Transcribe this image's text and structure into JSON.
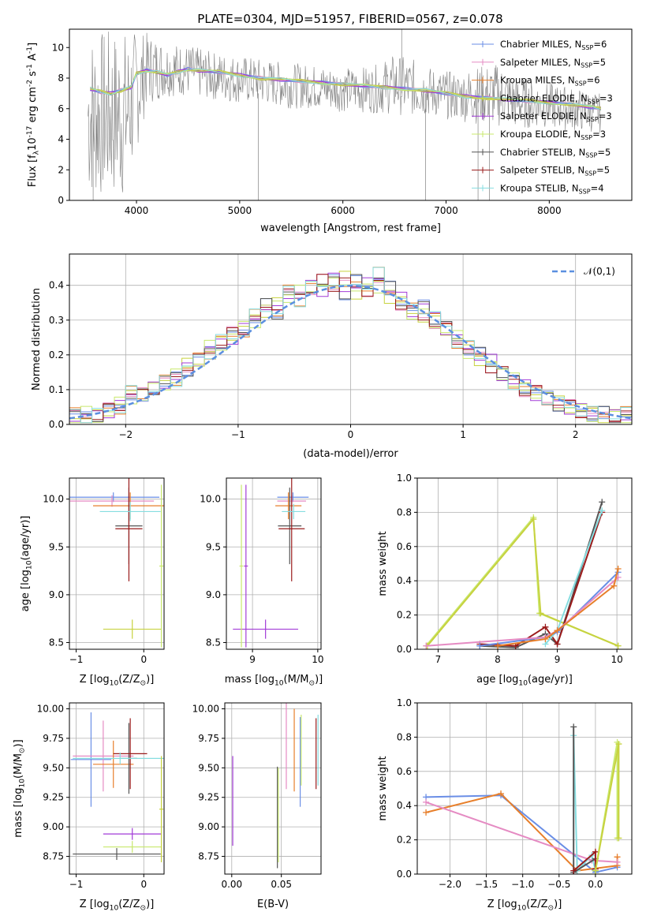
{
  "colors": {
    "chabrier_miles": "#6a8ee6",
    "salpeter_miles": "#e58bc3",
    "kroupa_miles": "#e77f2b",
    "chabrier_elodie": "#c7d23f",
    "salpeter_elodie": "#a23bd7",
    "kroupa_elodie": "#c8e86d",
    "chabrier_stelib": "#555555",
    "salpeter_stelib": "#9a1b1b",
    "kroupa_stelib": "#86dde0",
    "data": "#808080",
    "normal": "#5b8fe0",
    "grid": "#b0b0b0"
  },
  "chart_data": [
    {
      "id": "spectrum",
      "type": "line",
      "title": "PLATE=0304, MJD=51957, FIBERID=0567, z=0.078",
      "xlabel": "wavelength [Angstrom, rest frame]",
      "ylabel_parts": [
        "Flux [f",
        "λ",
        "10",
        "-17",
        " erg cm",
        "-2",
        " s",
        "-1",
        " A",
        "-1",
        "]"
      ],
      "xlim": [
        3350,
        8800
      ],
      "ylim": [
        0,
        11.2
      ],
      "xticks": [
        4000,
        5000,
        6000,
        7000,
        8000
      ],
      "yticks": [
        0,
        2,
        4,
        6,
        8,
        10
      ],
      "grid": false,
      "legend_position": "top-right",
      "legend": [
        {
          "label": "Chabrier MILES, N",
          "sub": "SSP",
          "tail": "=6",
          "color_key": "chabrier_miles"
        },
        {
          "label": "Salpeter MILES, N",
          "sub": "SSP",
          "tail": "=5",
          "color_key": "salpeter_miles"
        },
        {
          "label": "Kroupa MILES, N",
          "sub": "SSP",
          "tail": "=6",
          "color_key": "kroupa_miles"
        },
        {
          "label": "Chabrier ELODIE, N",
          "sub": "SSP",
          "tail": "=3",
          "color_key": "chabrier_elodie"
        },
        {
          "label": "Salpeter ELODIE, N",
          "sub": "SSP",
          "tail": "=3",
          "color_key": "salpeter_elodie"
        },
        {
          "label": "Kroupa ELODIE, N",
          "sub": "SSP",
          "tail": "=3",
          "color_key": "kroupa_elodie"
        },
        {
          "label": "Chabrier STELIB, N",
          "sub": "SSP",
          "tail": "=5",
          "color_key": "chabrier_stelib"
        },
        {
          "label": "Salpeter STELIB, N",
          "sub": "SSP",
          "tail": "=5",
          "color_key": "salpeter_stelib"
        },
        {
          "label": "Kroupa STELIB, N",
          "sub": "SSP",
          "tail": "=4",
          "color_key": "kroupa_stelib"
        }
      ],
      "model_continuum": {
        "x": [
          3550,
          3650,
          3750,
          3850,
          3950,
          4000,
          4100,
          4200,
          4300,
          4400,
          4500,
          4600,
          4800,
          5000,
          5200,
          5400,
          5600,
          5800,
          6000,
          6200,
          6400,
          6600,
          6800,
          7000,
          7200,
          7400,
          7600,
          7800,
          8000,
          8200,
          8400,
          8500
        ],
        "y": [
          7.3,
          7.1,
          7.0,
          7.2,
          7.4,
          8.3,
          8.5,
          8.4,
          8.2,
          8.4,
          8.6,
          8.5,
          8.4,
          8.2,
          8.0,
          7.9,
          7.8,
          7.7,
          7.6,
          7.5,
          7.4,
          7.3,
          7.2,
          7.0,
          6.8,
          6.7,
          6.6,
          6.5,
          6.4,
          6.3,
          6.1,
          6.0
        ]
      },
      "observed_envelope": {
        "x": [
          3530,
          3700,
          3900,
          4100,
          4300,
          4500,
          4700,
          4900,
          5100,
          5300,
          5500,
          5700,
          5900,
          6100,
          6300,
          6500,
          6700,
          6900,
          7100,
          7300,
          7500,
          7700,
          7900,
          8100,
          8300,
          8500
        ],
        "y_high": [
          11.2,
          11.2,
          11.2,
          11.0,
          10.4,
          10.2,
          9.8,
          9.6,
          9.4,
          9.2,
          9.0,
          8.9,
          8.8,
          8.7,
          8.8,
          9.6,
          9.2,
          8.6,
          8.4,
          8.8,
          9.0,
          8.2,
          7.8,
          7.6,
          7.3,
          7.0
        ],
        "y_low": [
          0,
          0,
          0,
          6.2,
          6.8,
          6.8,
          6.6,
          6.4,
          6.3,
          6.2,
          6.0,
          6.0,
          5.8,
          5.8,
          5.7,
          5.6,
          5.5,
          5.4,
          5.2,
          5.0,
          4.8,
          4.6,
          4.8,
          4.6,
          4.5,
          4.4
        ]
      }
    },
    {
      "id": "residuals",
      "type": "histogram",
      "xlabel": "(data-model)/error",
      "ylabel": "Normed distribution",
      "xlim": [
        -2.5,
        2.5
      ],
      "ylim": [
        0,
        0.49
      ],
      "xticks": [
        -2,
        -1,
        0,
        1,
        2
      ],
      "yticks": [
        0.0,
        0.1,
        0.2,
        0.3,
        0.4
      ],
      "grid": true,
      "legend_position": "top-right",
      "legend": [
        {
          "label": "𝒩(0,1)",
          "color_key": "normal",
          "style": "dashed"
        }
      ],
      "bin_edges_start": -2.5,
      "bin_width": 0.1,
      "series_values": [
        [
          0.03,
          0.02,
          0.03,
          0.04,
          0.05,
          0.09,
          0.08,
          0.1,
          0.12,
          0.13,
          0.16,
          0.19,
          0.21,
          0.24,
          0.25,
          0.27,
          0.31,
          0.34,
          0.32,
          0.38,
          0.36,
          0.4,
          0.39,
          0.42,
          0.38,
          0.41,
          0.4,
          0.43,
          0.39,
          0.36,
          0.33,
          0.34,
          0.31,
          0.28,
          0.24,
          0.22,
          0.2,
          0.18,
          0.14,
          0.12,
          0.11,
          0.09,
          0.08,
          0.06,
          0.05,
          0.04,
          0.03,
          0.03,
          0.02,
          0.03
        ],
        [
          0.02,
          0.03,
          0.02,
          0.04,
          0.06,
          0.08,
          0.09,
          0.11,
          0.12,
          0.14,
          0.17,
          0.18,
          0.22,
          0.23,
          0.26,
          0.28,
          0.3,
          0.33,
          0.35,
          0.37,
          0.38,
          0.39,
          0.41,
          0.4,
          0.42,
          0.38,
          0.39,
          0.4,
          0.37,
          0.35,
          0.32,
          0.31,
          0.29,
          0.27,
          0.25,
          0.21,
          0.19,
          0.17,
          0.15,
          0.13,
          0.1,
          0.09,
          0.07,
          0.06,
          0.05,
          0.04,
          0.03,
          0.02,
          0.03,
          0.02
        ]
      ],
      "normal_curve": {
        "mean": 0,
        "sigma": 1
      }
    },
    {
      "id": "age_vs_Z",
      "type": "errorbar",
      "xlabel_parts": [
        "Z [log",
        "10",
        "(Z/Z",
        "⊙",
        ")]"
      ],
      "ylabel_parts": [
        "age  [log",
        "10",
        "(age/yr)]"
      ],
      "xlim": [
        -1.1,
        0.3
      ],
      "ylim": [
        8.43,
        10.22
      ],
      "xticks": [
        -1,
        0
      ],
      "yticks": [
        8.5,
        9.0,
        9.5,
        10.0
      ],
      "grid": true,
      "points": [
        {
          "x": -0.45,
          "y": 10.02,
          "xerr": 0.68,
          "yerr": 0.05,
          "color_key": "chabrier_miles"
        },
        {
          "x": -0.47,
          "y": 9.98,
          "xerr": 0.62,
          "yerr": 0.06,
          "color_key": "salpeter_miles"
        },
        {
          "x": -0.2,
          "y": 9.93,
          "xerr": 0.55,
          "yerr": 0.14,
          "color_key": "kroupa_miles"
        },
        {
          "x": -0.22,
          "y": 9.72,
          "xerr": 0.2,
          "yerr": 0.4,
          "color_key": "chabrier_stelib"
        },
        {
          "x": -0.22,
          "y": 9.69,
          "xerr": 0.2,
          "yerr": 0.55,
          "color_key": "salpeter_stelib"
        },
        {
          "x": -0.2,
          "y": 9.87,
          "xerr": 0.45,
          "yerr": 0.1,
          "color_key": "kroupa_stelib"
        },
        {
          "x": -0.17,
          "y": 8.64,
          "xerr": 0.43,
          "yerr": 0.1,
          "color_key": "chabrier_elodie"
        },
        {
          "x": 0.26,
          "y": 9.3,
          "xerr": 0.03,
          "yerr": 0.85,
          "color_key": "kroupa_elodie"
        }
      ]
    },
    {
      "id": "age_vs_mass",
      "type": "errorbar",
      "xlabel_parts": [
        "mass [log",
        "10",
        "(M/M",
        "⊙",
        ")]"
      ],
      "xlim": [
        8.6,
        10.05
      ],
      "ylim": [
        8.43,
        10.22
      ],
      "xticks": [
        9,
        10
      ],
      "yticks": [
        8.5,
        9.0,
        9.5,
        10.0
      ],
      "grid": true,
      "points": [
        {
          "x": 9.62,
          "y": 10.02,
          "xerr": 0.24,
          "yerr": 0.05,
          "color_key": "chabrier_miles"
        },
        {
          "x": 9.6,
          "y": 9.98,
          "xerr": 0.22,
          "yerr": 0.06,
          "color_key": "salpeter_miles"
        },
        {
          "x": 9.55,
          "y": 9.93,
          "xerr": 0.2,
          "yerr": 0.14,
          "color_key": "kroupa_miles"
        },
        {
          "x": 9.57,
          "y": 9.72,
          "xerr": 0.18,
          "yerr": 0.4,
          "color_key": "chabrier_stelib"
        },
        {
          "x": 9.6,
          "y": 9.69,
          "xerr": 0.2,
          "yerr": 0.55,
          "color_key": "salpeter_stelib"
        },
        {
          "x": 9.63,
          "y": 9.87,
          "xerr": 0.18,
          "yerr": 0.08,
          "color_key": "kroupa_stelib"
        },
        {
          "x": 9.2,
          "y": 8.64,
          "xerr": 0.5,
          "yerr": 0.1,
          "color_key": "salpeter_elodie"
        },
        {
          "x": 8.83,
          "y": 9.3,
          "xerr": 0.03,
          "yerr": 0.85,
          "color_key": "kroupa_elodie"
        },
        {
          "x": 8.9,
          "y": 9.3,
          "xerr": 0.03,
          "yerr": 0.85,
          "color_key": "salpeter_elodie"
        }
      ]
    },
    {
      "id": "weight_vs_age",
      "type": "line",
      "xlabel_parts": [
        "age  [log",
        "10",
        "(age/yr)]"
      ],
      "ylabel": "mass weight",
      "xlim": [
        6.65,
        10.25
      ],
      "ylim": [
        0,
        1.0
      ],
      "xticks": [
        7,
        8,
        9,
        10
      ],
      "yticks": [
        0.0,
        0.2,
        0.4,
        0.6,
        0.8,
        1.0
      ],
      "grid": true,
      "series": [
        {
          "color_key": "kroupa_elodie",
          "x": [
            6.8,
            8.6,
            8.7,
            10.02
          ],
          "y": [
            0.02,
            0.77,
            0.21,
            0.02
          ]
        },
        {
          "color_key": "chabrier_elodie",
          "x": [
            6.82,
            8.6,
            8.72,
            10.02
          ],
          "y": [
            0.02,
            0.76,
            0.21,
            0.02
          ]
        },
        {
          "color_key": "chabrier_stelib",
          "x": [
            7.7,
            8.3,
            8.8,
            9.0,
            9.75
          ],
          "y": [
            0.02,
            0.01,
            0.09,
            0.03,
            0.86
          ]
        },
        {
          "color_key": "salpeter_stelib",
          "x": [
            7.7,
            8.3,
            8.8,
            9.0,
            9.75
          ],
          "y": [
            0.03,
            0.02,
            0.13,
            0.03,
            0.8
          ]
        },
        {
          "color_key": "kroupa_stelib",
          "x": [
            8.8,
            9.0,
            9.75
          ],
          "y": [
            0.03,
            0.11,
            0.81
          ]
        },
        {
          "color_key": "chabrier_miles",
          "x": [
            7.7,
            8.8,
            9.0,
            10.02
          ],
          "y": [
            0.02,
            0.07,
            0.1,
            0.45
          ]
        },
        {
          "color_key": "salpeter_miles",
          "x": [
            6.8,
            8.8,
            9.0,
            10.02
          ],
          "y": [
            0.02,
            0.07,
            0.11,
            0.42
          ]
        },
        {
          "color_key": "kroupa_miles",
          "x": [
            8.0,
            8.8,
            9.0,
            9.95,
            10.02
          ],
          "y": [
            0.02,
            0.06,
            0.11,
            0.37,
            0.47
          ]
        }
      ]
    },
    {
      "id": "mass_vs_Z",
      "type": "errorbar",
      "xlabel_parts": [
        "Z [log",
        "10",
        "(Z/Z",
        "⊙",
        ")]"
      ],
      "ylabel_parts": [
        "mass [log",
        "10",
        "(M/M",
        "⊙",
        ")]"
      ],
      "xlim": [
        -1.1,
        0.3
      ],
      "ylim": [
        8.6,
        10.05
      ],
      "xticks": [
        -1,
        0
      ],
      "yticks": [
        8.75,
        9.0,
        9.25,
        9.5,
        9.75,
        10.0
      ],
      "grid": true,
      "points": [
        {
          "x": -0.78,
          "y": 9.57,
          "xerr": 0.3,
          "yerr": 0.4,
          "color_key": "chabrier_miles"
        },
        {
          "x": -0.6,
          "y": 9.6,
          "xerr": 0.45,
          "yerr": 0.3,
          "color_key": "salpeter_miles"
        },
        {
          "x": -0.45,
          "y": 9.53,
          "xerr": 0.3,
          "yerr": 0.2,
          "color_key": "kroupa_miles"
        },
        {
          "x": -0.22,
          "y": 9.58,
          "xerr": 0.12,
          "yerr": 0.3,
          "color_key": "chabrier_stelib"
        },
        {
          "x": -0.2,
          "y": 9.62,
          "xerr": 0.25,
          "yerr": 0.3,
          "color_key": "salpeter_stelib"
        },
        {
          "x": -0.35,
          "y": 9.58,
          "xerr": 0.7,
          "yerr": 0.05,
          "color_key": "kroupa_stelib"
        },
        {
          "x": -0.17,
          "y": 8.94,
          "xerr": 0.43,
          "yerr": 0.05,
          "color_key": "salpeter_elodie"
        },
        {
          "x": -0.17,
          "y": 8.83,
          "xerr": 0.43,
          "yerr": 0.05,
          "color_key": "kroupa_elodie"
        },
        {
          "x": -0.4,
          "y": 8.77,
          "xerr": 0.65,
          "yerr": 0.05,
          "color_key": "chabrier_stelib"
        },
        {
          "x": 0.26,
          "y": 9.15,
          "xerr": 0.03,
          "yerr": 0.45,
          "color_key": "chabrier_elodie"
        }
      ]
    },
    {
      "id": "mass_vs_ebv",
      "type": "errorbar",
      "xlabel": "E(B-V)",
      "xlim": [
        -0.007,
        0.09
      ],
      "ylim": [
        8.6,
        10.05
      ],
      "xticks": [
        0.0,
        0.05
      ],
      "yticks": [
        8.75,
        9.0,
        9.25,
        9.5,
        9.75,
        10.0
      ],
      "grid": true,
      "points": [
        {
          "x": 0.001,
          "y": 9.22,
          "xerr": 0,
          "yerr": 0.38,
          "color_key": "salpeter_elodie"
        },
        {
          "x": 0.046,
          "y": 9.08,
          "xerr": 0,
          "yerr": 0.43,
          "color_key": "chabrier_stelib"
        },
        {
          "x": 0.047,
          "y": 9.1,
          "xerr": 0,
          "yerr": 0.4,
          "color_key": "kroupa_elodie"
        },
        {
          "x": 0.055,
          "y": 9.7,
          "xerr": 0,
          "yerr": 0.38,
          "color_key": "salpeter_miles"
        },
        {
          "x": 0.063,
          "y": 9.65,
          "xerr": 0,
          "yerr": 0.35,
          "color_key": "kroupa_miles"
        },
        {
          "x": 0.069,
          "y": 9.55,
          "xerr": 0,
          "yerr": 0.38,
          "color_key": "chabrier_miles"
        },
        {
          "x": 0.07,
          "y": 9.65,
          "xerr": 0,
          "yerr": 0.3,
          "color_key": "kroupa_elodie"
        },
        {
          "x": 0.085,
          "y": 9.62,
          "xerr": 0,
          "yerr": 0.3,
          "color_key": "salpeter_stelib"
        },
        {
          "x": 0.087,
          "y": 9.65,
          "xerr": 0,
          "yerr": 0.3,
          "color_key": "kroupa_stelib"
        }
      ]
    },
    {
      "id": "weight_vs_Z",
      "type": "line",
      "xlabel_parts": [
        "Z [log",
        "10",
        "(Z/Z",
        "⊙",
        ")]"
      ],
      "ylabel": "mass weight",
      "xlim": [
        -2.45,
        0.5
      ],
      "ylim": [
        0,
        1.0
      ],
      "xticks": [
        -2.0,
        -1.5,
        -1.0,
        -0.5,
        0.0
      ],
      "yticks": [
        0.0,
        0.2,
        0.4,
        0.6,
        0.8,
        1.0
      ],
      "grid": true,
      "series": [
        {
          "color_key": "chabrier_miles",
          "x": [
            -2.33,
            -1.3,
            0.0,
            0.3
          ],
          "y": [
            0.45,
            0.46,
            0.01,
            0.04
          ]
        },
        {
          "color_key": "kroupa_miles",
          "x": [
            -2.33,
            -1.3,
            -0.25,
            0.3,
            0.3
          ],
          "y": [
            0.36,
            0.47,
            0.02,
            0.05,
            0.1
          ]
        },
        {
          "color_key": "salpeter_miles",
          "x": [
            -2.33,
            -0.05,
            0.3
          ],
          "y": [
            0.42,
            0.08,
            0.07
          ]
        },
        {
          "color_key": "kroupa_stelib",
          "x": [
            -0.3,
            -0.25,
            -0.05,
            0.0
          ],
          "y": [
            0.81,
            0.02,
            0.11,
            0.02
          ]
        },
        {
          "color_key": "chabrier_stelib",
          "x": [
            -0.3,
            -0.3,
            0.0
          ],
          "y": [
            0.86,
            0.01,
            0.09
          ]
        },
        {
          "color_key": "salpeter_stelib",
          "x": [
            -0.3,
            0.0,
            0.0
          ],
          "y": [
            0.02,
            0.13,
            0.03
          ]
        },
        {
          "color_key": "kroupa_elodie",
          "x": [
            0.0,
            0.3,
            0.3
          ],
          "y": [
            0.02,
            0.77,
            0.21
          ]
        },
        {
          "color_key": "chabrier_elodie",
          "x": [
            0.0,
            0.32,
            0.32
          ],
          "y": [
            0.02,
            0.76,
            0.21
          ]
        }
      ]
    }
  ]
}
